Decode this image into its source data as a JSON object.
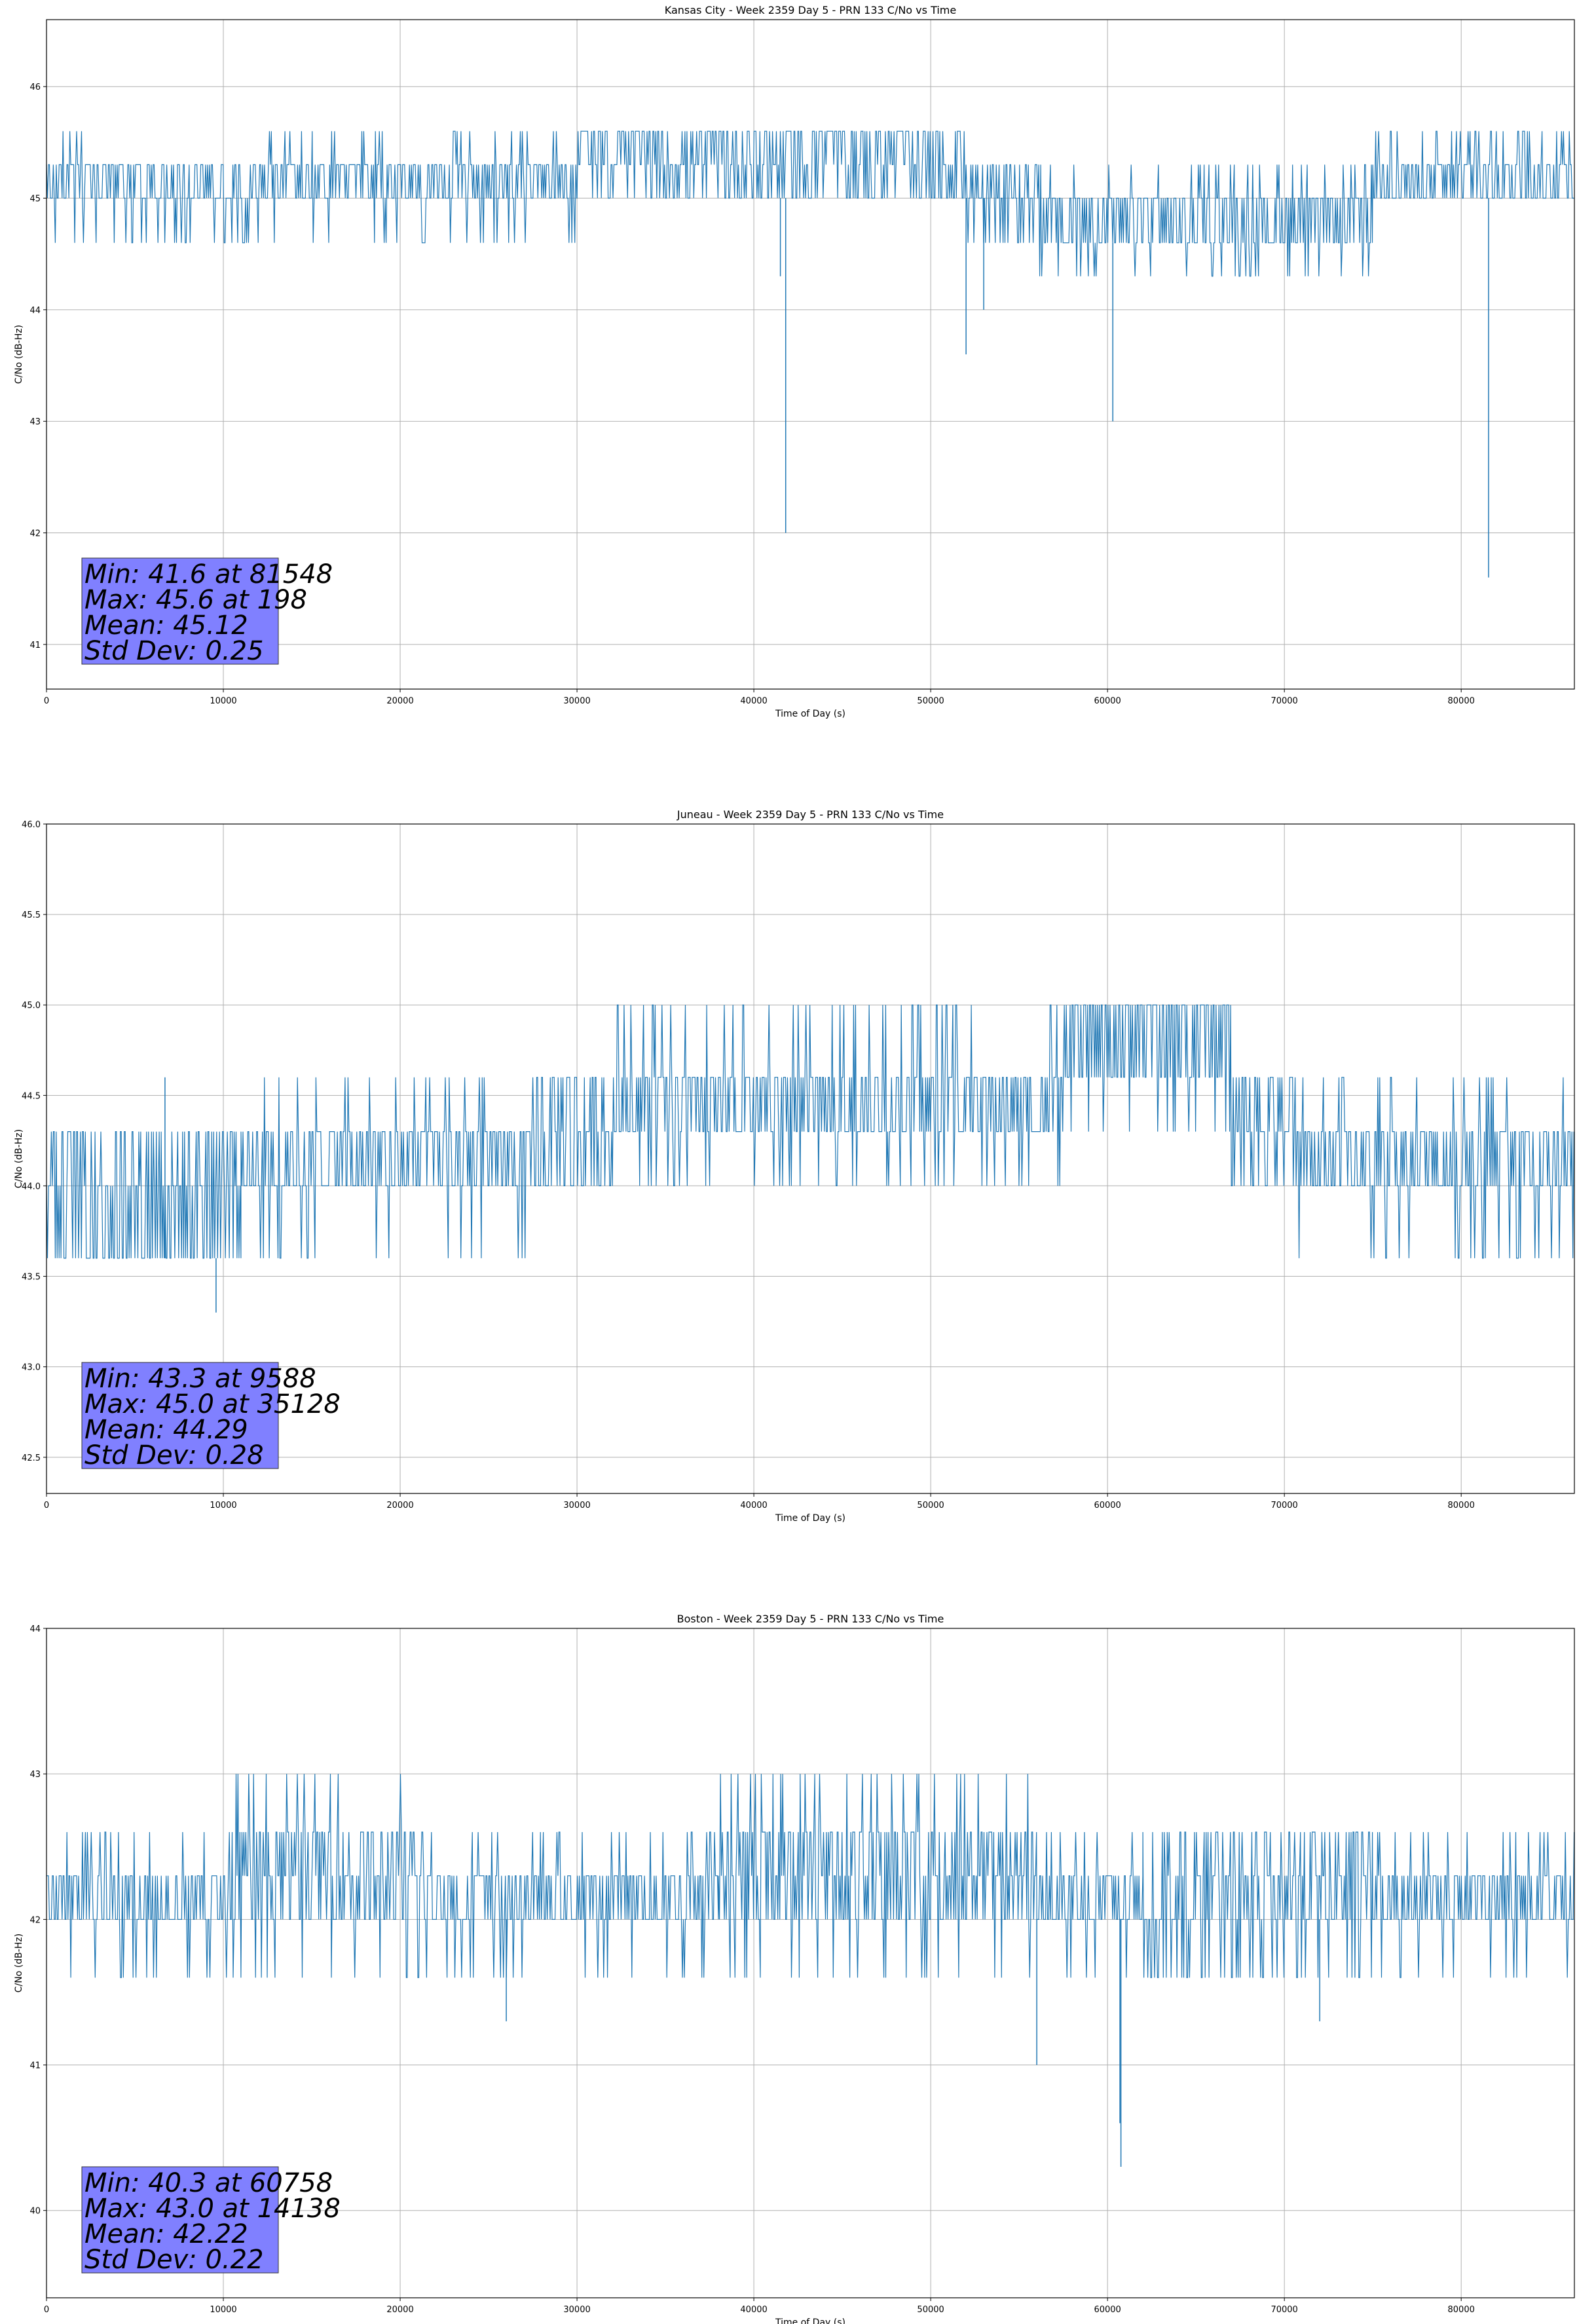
{
  "chart_data": [
    {
      "type": "line",
      "title": "Kansas City - Week 2359 Day 5 - PRN 133 C/No vs Time",
      "xlabel": "Time of Day (s)",
      "ylabel": "C/No (dB-Hz)",
      "xlim": [
        0,
        86400
      ],
      "ylim": [
        40.6,
        46.6
      ],
      "xticks": [
        0,
        10000,
        20000,
        30000,
        40000,
        50000,
        60000,
        70000,
        80000
      ],
      "yticks": [
        41,
        42,
        43,
        44,
        45,
        46
      ],
      "ytick_labels": [
        "41",
        "42",
        "43",
        "44",
        "45",
        "46"
      ],
      "grid": true,
      "color": "#1f77b4",
      "band_levels": [
        45.0,
        45.3
      ],
      "upper_level": 45.6,
      "lower_level": 44.6,
      "segments": [
        {
          "x": [
            0,
            3500
          ],
          "base": [
            45.0,
            45.3
          ],
          "extra": [
            44.6,
            45.6
          ]
        },
        {
          "x": [
            3500,
            12000
          ],
          "base": [
            45.0,
            45.3
          ],
          "extra": [
            44.6
          ]
        },
        {
          "x": [
            12000,
            30000
          ],
          "base": [
            45.0,
            45.3
          ],
          "extra": [
            44.6,
            45.6
          ]
        },
        {
          "x": [
            30000,
            52000
          ],
          "base": [
            45.0,
            45.3,
            45.6
          ],
          "extra": [
            45.6
          ]
        },
        {
          "x": [
            52000,
            56000
          ],
          "base": [
            45.0,
            45.3
          ],
          "extra": [
            44.6
          ]
        },
        {
          "x": [
            56000,
            75000
          ],
          "base": [
            44.6,
            45.0
          ],
          "extra": [
            44.3,
            45.3
          ]
        },
        {
          "x": [
            75000,
            86400
          ],
          "base": [
            45.0,
            45.3
          ],
          "extra": [
            45.6
          ]
        }
      ],
      "spikes": [
        {
          "x": 41500,
          "y": 44.3
        },
        {
          "x": 41800,
          "y": 42.0
        },
        {
          "x": 52000,
          "y": 43.6
        },
        {
          "x": 53000,
          "y": 44.0
        },
        {
          "x": 60300,
          "y": 43.0
        },
        {
          "x": 81548,
          "y": 41.6
        }
      ],
      "stats": {
        "min": "Min: 41.6 at 81548",
        "max": "Max: 45.6 at 198",
        "mean": "Mean: 45.12",
        "std": "Std Dev: 0.25"
      }
    },
    {
      "type": "line",
      "title": "Juneau - Week 2359 Day 5 - PRN 133 C/No vs Time",
      "xlabel": "Time of Day (s)",
      "ylabel": "C/No (dB-Hz)",
      "xlim": [
        0,
        86400
      ],
      "ylim": [
        42.3,
        46.0
      ],
      "xticks": [
        0,
        10000,
        20000,
        30000,
        40000,
        50000,
        60000,
        70000,
        80000
      ],
      "yticks": [
        42.5,
        43.0,
        43.5,
        44.0,
        44.5,
        45.0,
        45.5,
        46.0
      ],
      "ytick_labels": [
        "42.5",
        "43.0",
        "43.5",
        "44.0",
        "44.5",
        "45.0",
        "45.5",
        "46.0"
      ],
      "grid": true,
      "color": "#1f77b4",
      "segments": [
        {
          "x": [
            0,
            600
          ],
          "base": [
            44.0,
            44.3
          ],
          "extra": [
            43.6
          ]
        },
        {
          "x": [
            600,
            11000
          ],
          "base": [
            43.6,
            44.0,
            44.3
          ],
          "extra": [
            43.6,
            44.3
          ]
        },
        {
          "x": [
            11000,
            27500
          ],
          "base": [
            44.0,
            44.3
          ],
          "extra": [
            43.6,
            44.6
          ]
        },
        {
          "x": [
            27500,
            32000
          ],
          "base": [
            44.0,
            44.3,
            44.6
          ],
          "extra": [
            44.0,
            44.6
          ]
        },
        {
          "x": [
            32000,
            57500
          ],
          "base": [
            44.3,
            44.6
          ],
          "extra": [
            44.0,
            45.0
          ]
        },
        {
          "x": [
            57500,
            67000
          ],
          "base": [
            44.6,
            45.0
          ],
          "extra": [
            44.3,
            45.0
          ]
        },
        {
          "x": [
            67000,
            70500
          ],
          "base": [
            44.3,
            44.6
          ],
          "extra": [
            44.0
          ]
        },
        {
          "x": [
            70500,
            79000
          ],
          "base": [
            44.0,
            44.3
          ],
          "extra": [
            43.6,
            44.6
          ]
        },
        {
          "x": [
            79000,
            86400
          ],
          "base": [
            44.0,
            44.3
          ],
          "extra": [
            44.6,
            43.6
          ]
        }
      ],
      "spikes": [
        {
          "x": 9588,
          "y": 43.3
        },
        {
          "x": 6700,
          "y": 44.6
        }
      ],
      "stats": {
        "min": "Min: 43.3 at 9588",
        "max": "Max: 45.0 at 35128",
        "mean": "Mean: 44.29",
        "std": "Std Dev: 0.28"
      }
    },
    {
      "type": "line",
      "title": "Boston - Week 2359 Day 5 - PRN 133 C/No vs Time",
      "xlabel": "Time of Day (s)",
      "ylabel": "C/No (dB-Hz)",
      "xlim": [
        0,
        86400
      ],
      "ylim": [
        39.4,
        44.0
      ],
      "xticks": [
        0,
        10000,
        20000,
        30000,
        40000,
        50000,
        60000,
        70000,
        80000
      ],
      "yticks": [
        40,
        41,
        42,
        43,
        44
      ],
      "ytick_labels": [
        "40",
        "41",
        "42",
        "43",
        "44"
      ],
      "grid": true,
      "color": "#1f77b4",
      "segments": [
        {
          "x": [
            0,
            10500
          ],
          "base": [
            42.0,
            42.3
          ],
          "extra": [
            41.6,
            42.6
          ]
        },
        {
          "x": [
            10500,
            21000
          ],
          "base": [
            42.0,
            42.3,
            42.6
          ],
          "extra": [
            43.0,
            41.6
          ]
        },
        {
          "x": [
            21000,
            38000
          ],
          "base": [
            42.0,
            42.3
          ],
          "extra": [
            41.6,
            42.6
          ]
        },
        {
          "x": [
            38000,
            56000
          ],
          "base": [
            42.0,
            42.3,
            42.6
          ],
          "extra": [
            43.0,
            41.6
          ]
        },
        {
          "x": [
            56000,
            62000
          ],
          "base": [
            42.0,
            42.3
          ],
          "extra": [
            41.6,
            42.6
          ]
        },
        {
          "x": [
            62000,
            75000
          ],
          "base": [
            42.0,
            42.3,
            42.6
          ],
          "extra": [
            41.6
          ]
        },
        {
          "x": [
            75000,
            86400
          ],
          "base": [
            42.0,
            42.3
          ],
          "extra": [
            41.6,
            42.6
          ]
        }
      ],
      "spikes": [
        {
          "x": 26000,
          "y": 41.3
        },
        {
          "x": 56000,
          "y": 41.0
        },
        {
          "x": 60700,
          "y": 40.6
        },
        {
          "x": 60758,
          "y": 40.3
        },
        {
          "x": 72000,
          "y": 41.3
        }
      ],
      "stats": {
        "min": "Min: 40.3 at 60758",
        "max": "Max: 43.0 at 14138",
        "mean": "Mean: 42.22",
        "std": "Std Dev: 0.22"
      }
    }
  ]
}
